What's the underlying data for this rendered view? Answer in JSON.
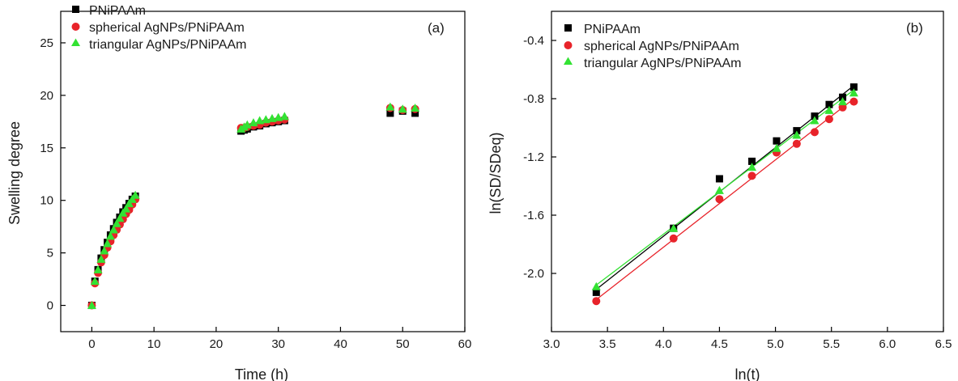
{
  "chart_data": [
    {
      "type": "scatter",
      "panel_label": "(a)",
      "xlabel": "Time (h)",
      "ylabel": "Swelling degree",
      "xlim": [
        -5,
        60
      ],
      "ylim": [
        -2.5,
        28
      ],
      "xticks": [
        0,
        10,
        20,
        30,
        40,
        50,
        60
      ],
      "yticks": [
        0,
        5,
        10,
        15,
        20,
        25
      ],
      "grid": false,
      "legend_position": "top-left",
      "series": [
        {
          "name": "PNiPAAm",
          "color": "#000000",
          "marker": "square",
          "x": [
            0,
            0.5,
            1,
            1.5,
            2,
            2.5,
            3,
            3.5,
            4,
            4.5,
            5,
            5.5,
            6,
            6.5,
            7,
            24,
            24.5,
            25,
            26,
            27,
            28,
            29,
            30,
            31,
            48,
            50,
            52
          ],
          "y": [
            0,
            2.3,
            3.4,
            4.5,
            5.3,
            6.0,
            6.7,
            7.3,
            7.9,
            8.4,
            8.9,
            9.3,
            9.7,
            10.1,
            10.4,
            16.6,
            16.7,
            16.8,
            17.0,
            17.1,
            17.3,
            17.4,
            17.5,
            17.6,
            18.3,
            18.5,
            18.3
          ]
        },
        {
          "name": "spherical AgNPs/PNiPAAm",
          "color": "#e8232a",
          "marker": "circle",
          "x": [
            0,
            0.5,
            1,
            1.5,
            2,
            2.5,
            3,
            3.5,
            4,
            4.5,
            5,
            5.5,
            6,
            6.5,
            7,
            24,
            24.5,
            25,
            26,
            27,
            28,
            29,
            30,
            31,
            48,
            50,
            52
          ],
          "y": [
            0,
            2.1,
            3.1,
            4.1,
            4.8,
            5.5,
            6.1,
            6.7,
            7.2,
            7.7,
            8.2,
            8.7,
            9.1,
            9.6,
            10.1,
            16.9,
            16.9,
            17.0,
            17.1,
            17.2,
            17.4,
            17.5,
            17.6,
            17.7,
            18.8,
            18.6,
            18.7
          ]
        },
        {
          "name": "triangular AgNPs/PNiPAAm",
          "color": "#33e233",
          "marker": "triangle",
          "x": [
            0,
            0.5,
            1,
            1.5,
            2,
            2.5,
            3,
            3.5,
            4,
            4.5,
            5,
            5.5,
            6,
            6.5,
            7,
            24,
            24.5,
            25,
            26,
            27,
            28,
            29,
            30,
            31,
            48,
            50,
            52
          ],
          "y": [
            0,
            2.3,
            3.4,
            4.4,
            5.2,
            5.9,
            6.6,
            7.2,
            7.8,
            8.3,
            8.8,
            9.2,
            9.7,
            10.1,
            10.5,
            16.8,
            17.0,
            17.2,
            17.4,
            17.6,
            17.7,
            17.8,
            17.9,
            18.0,
            18.9,
            18.7,
            18.8
          ]
        }
      ]
    },
    {
      "type": "scatter",
      "panel_label": "(b)",
      "xlabel": "ln(t)",
      "ylabel": "ln(SD/SDeq)",
      "xlim": [
        3.0,
        6.5
      ],
      "ylim": [
        -2.4,
        -0.2
      ],
      "xticks": [
        3.0,
        3.5,
        4.0,
        4.5,
        5.0,
        5.5,
        6.0,
        6.5
      ],
      "yticks": [
        -2.0,
        -1.6,
        -1.2,
        -0.8,
        -0.4
      ],
      "grid": false,
      "legend_position": "top-left",
      "fit_lines": true,
      "series": [
        {
          "name": "PNiPAAm",
          "color": "#000000",
          "marker": "square",
          "x": [
            3.4,
            4.09,
            4.5,
            4.79,
            5.01,
            5.19,
            5.35,
            5.48,
            5.6,
            5.7
          ],
          "y": [
            -2.13,
            -1.69,
            -1.35,
            -1.23,
            -1.09,
            -1.02,
            -0.92,
            -0.84,
            -0.79,
            -0.72
          ],
          "fit": {
            "x": [
              3.4,
              5.7
            ],
            "y": [
              -2.11,
              -0.71
            ]
          }
        },
        {
          "name": "spherical AgNPs/PNiPAAm",
          "color": "#e8232a",
          "marker": "circle",
          "x": [
            3.4,
            4.09,
            4.5,
            4.79,
            5.01,
            5.19,
            5.35,
            5.48,
            5.6,
            5.7
          ],
          "y": [
            -2.19,
            -1.76,
            -1.49,
            -1.33,
            -1.17,
            -1.11,
            -1.03,
            -0.94,
            -0.86,
            -0.82
          ],
          "fit": {
            "x": [
              3.4,
              5.7
            ],
            "y": [
              -2.18,
              -0.8
            ]
          }
        },
        {
          "name": "triangular AgNPs/PNiPAAm",
          "color": "#33e233",
          "marker": "triangle",
          "x": [
            3.4,
            4.09,
            4.5,
            4.79,
            5.01,
            5.19,
            5.35,
            5.48,
            5.6,
            5.7
          ],
          "y": [
            -2.09,
            -1.69,
            -1.43,
            -1.27,
            -1.14,
            -1.05,
            -0.95,
            -0.88,
            -0.82,
            -0.76
          ],
          "fit": {
            "x": [
              3.4,
              5.7
            ],
            "y": [
              -2.08,
              -0.74
            ]
          }
        }
      ]
    }
  ]
}
